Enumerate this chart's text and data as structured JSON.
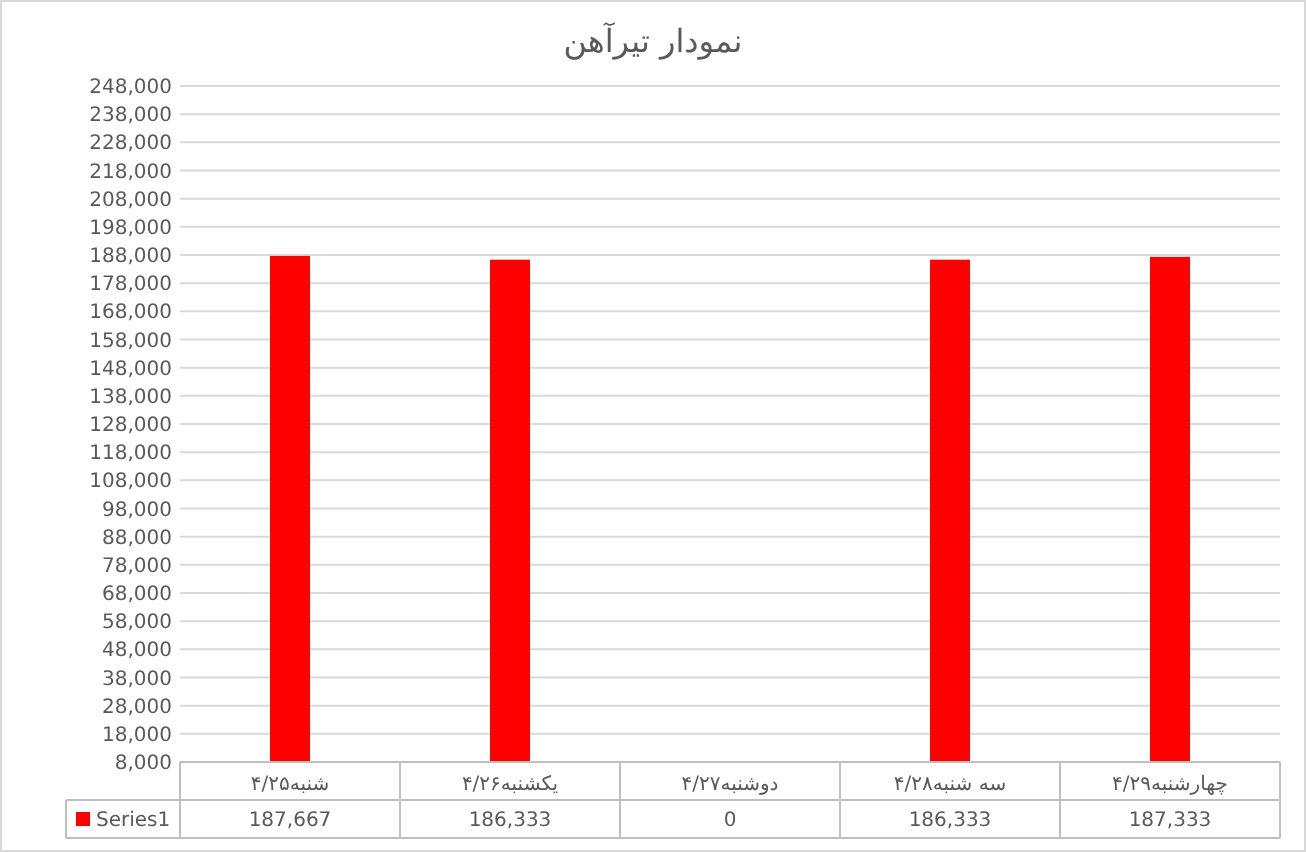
{
  "chart_data": {
    "type": "bar",
    "title": "نمودار تیرآهن",
    "categories": [
      "شنبه۴/۲۵",
      "یکشنبه۴/۲۶",
      "دوشنبه۴/۲۷",
      "سه شنبه۴/۲۸",
      "چهارشنبه۴/۲۹"
    ],
    "series": [
      {
        "name": "Series1",
        "color": "#ff0000",
        "values": [
          187667,
          186333,
          null,
          186333,
          187333
        ],
        "value_labels": [
          "187,667",
          "186,333",
          "0",
          "186,333",
          "187,333"
        ]
      }
    ],
    "ylim": [
      8000,
      248000
    ],
    "yticks": [
      {
        "value": 8000,
        "label": "8,000"
      },
      {
        "value": 18000,
        "label": "18,000"
      },
      {
        "value": 28000,
        "label": "28,000"
      },
      {
        "value": 38000,
        "label": "38,000"
      },
      {
        "value": 48000,
        "label": "48,000"
      },
      {
        "value": 58000,
        "label": "58,000"
      },
      {
        "value": 68000,
        "label": "68,000"
      },
      {
        "value": 78000,
        "label": "78,000"
      },
      {
        "value": 88000,
        "label": "88,000"
      },
      {
        "value": 98000,
        "label": "98,000"
      },
      {
        "value": 108000,
        "label": "108,000"
      },
      {
        "value": 118000,
        "label": "118,000"
      },
      {
        "value": 128000,
        "label": "128,000"
      },
      {
        "value": 138000,
        "label": "138,000"
      },
      {
        "value": 148000,
        "label": "148,000"
      },
      {
        "value": 158000,
        "label": "158,000"
      },
      {
        "value": 168000,
        "label": "168,000"
      },
      {
        "value": 178000,
        "label": "178,000"
      },
      {
        "value": 188000,
        "label": "188,000"
      },
      {
        "value": 198000,
        "label": "198,000"
      },
      {
        "value": 208000,
        "label": "208,000"
      },
      {
        "value": 218000,
        "label": "218,000"
      },
      {
        "value": 228000,
        "label": "228,000"
      },
      {
        "value": 238000,
        "label": "238,000"
      },
      {
        "value": 248000,
        "label": "248,000"
      }
    ],
    "grid": "y"
  }
}
